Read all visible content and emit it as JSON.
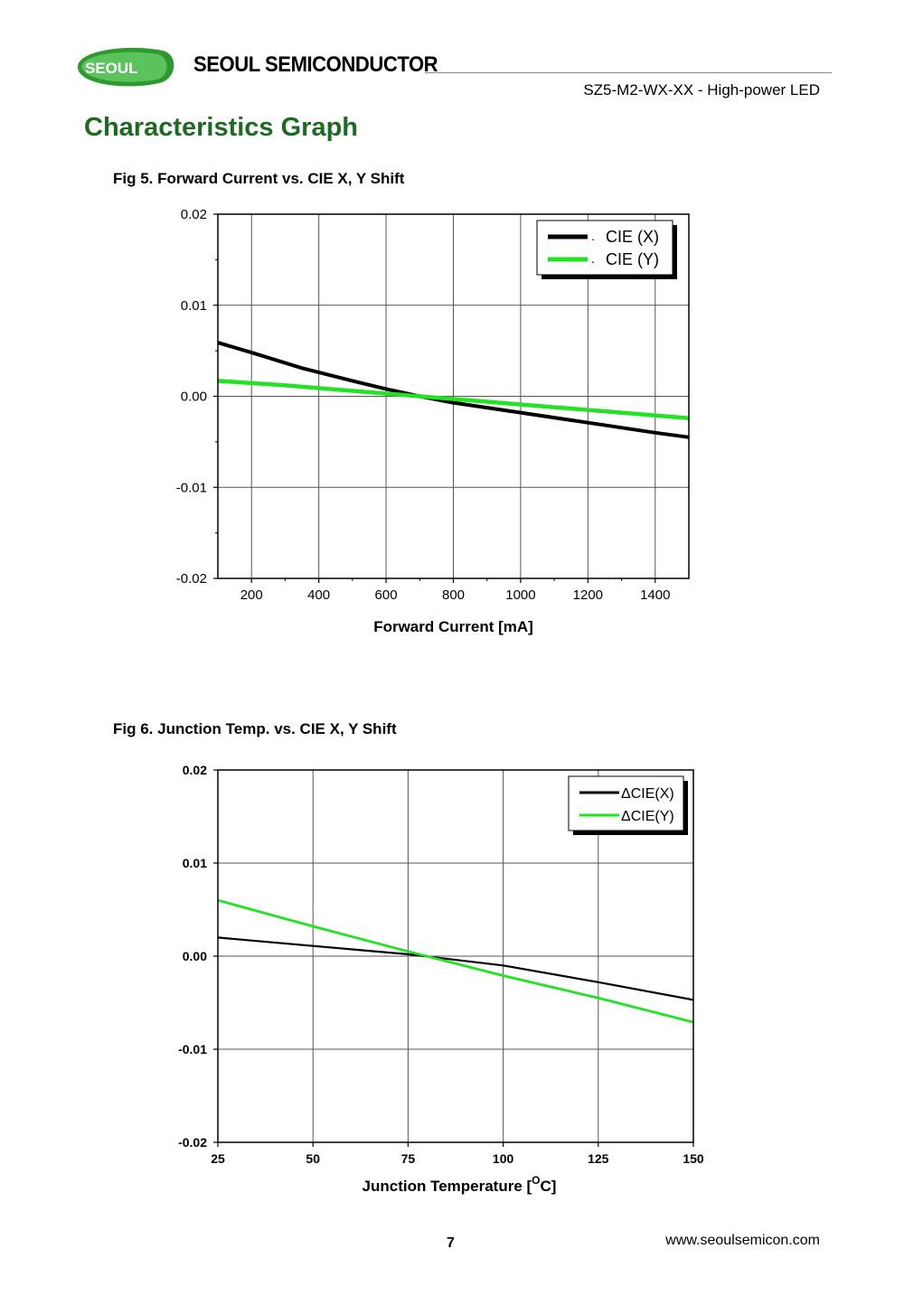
{
  "header": {
    "logo_text": "SEOUL",
    "brand": "SEOUL SEMICONDUCTOR",
    "product": "SZ5-M2-WX-XX - High-power LED"
  },
  "section_title": "Characteristics Graph",
  "footer": {
    "page_number": "7",
    "website": "www.seoulsemicon.com"
  },
  "colors": {
    "brand_green": "#1d6b22",
    "series_x": "#000000",
    "series_y": "#22e322"
  },
  "chart_data": [
    {
      "type": "line",
      "title": "Fig 5. Forward Current vs. CIE X, Y Shift",
      "xlabel": "Forward Current [mA]",
      "ylabel": "",
      "xlim": [
        100,
        1500
      ],
      "ylim": [
        -0.02,
        0.02
      ],
      "x_ticks": [
        200,
        400,
        600,
        800,
        1000,
        1200,
        1400
      ],
      "y_ticks": [
        "0.02",
        "0.01",
        "0.00",
        "-0.01",
        "-0.02"
      ],
      "grid": true,
      "legend": "top-right",
      "series": [
        {
          "name": "CIE (X)",
          "x": [
            100,
            200,
            350,
            500,
            600,
            700,
            800,
            1000,
            1200,
            1400,
            1500
          ],
          "y": [
            0.0059,
            0.0048,
            0.0031,
            0.0017,
            0.0008,
            0.0,
            -0.0007,
            -0.0018,
            -0.0029,
            -0.004,
            -0.0045
          ]
        },
        {
          "name": "CIE (Y)",
          "x": [
            100,
            300,
            500,
            700,
            900,
            1100,
            1300,
            1500
          ],
          "y": [
            0.0017,
            0.0012,
            0.0006,
            0.0,
            -0.0006,
            -0.0012,
            -0.0018,
            -0.0024
          ]
        }
      ]
    },
    {
      "type": "line",
      "title": "Fig 6. Junction Temp. vs. CIE X, Y Shift",
      "xlabel": "Junction Temperature [",
      "xlabel_sup": "O",
      "xlabel_suffix": "C]",
      "ylabel": "",
      "xlim": [
        25,
        150
      ],
      "ylim": [
        -0.02,
        0.02
      ],
      "x_ticks": [
        25,
        50,
        75,
        100,
        125,
        150
      ],
      "y_ticks": [
        "0.02",
        "0.01",
        "0.00",
        "-0.01",
        "-0.02"
      ],
      "grid": true,
      "legend": "top-right",
      "series": [
        {
          "name": "ΔCIE(X)",
          "x": [
            25,
            50,
            75,
            100,
            125,
            150
          ],
          "y": [
            0.002,
            0.0011,
            0.0002,
            -0.001,
            -0.0028,
            -0.0047
          ]
        },
        {
          "name": "ΔCIE(Y)",
          "x": [
            25,
            50,
            75,
            100,
            125,
            150
          ],
          "y": [
            0.006,
            0.0032,
            0.0005,
            -0.0021,
            -0.0045,
            -0.0071
          ]
        }
      ]
    }
  ]
}
